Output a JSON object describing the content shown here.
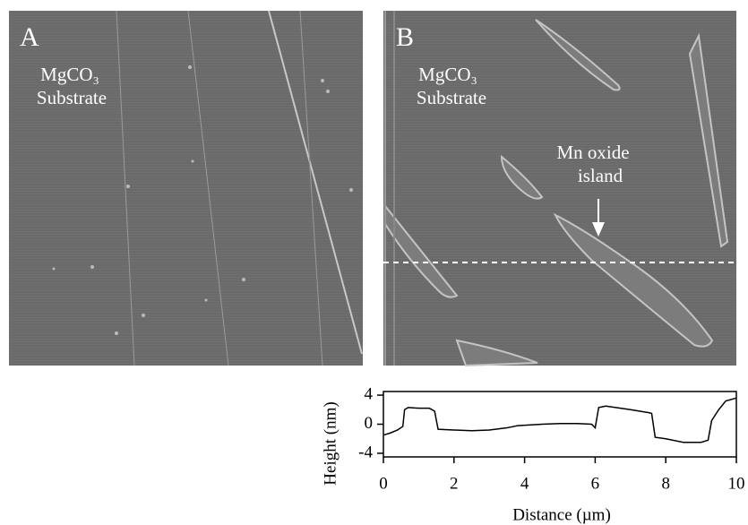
{
  "panels": [
    {
      "letter": "A",
      "material": "MgCO₃",
      "material_line2": "Substrate"
    },
    {
      "letter": "B",
      "material": "MgCO₃",
      "material_line2": "Substrate",
      "annotation_line1": "Mn oxide",
      "annotation_line2": "island"
    }
  ],
  "chart_data": {
    "type": "line",
    "x_label": "Distance (µm)",
    "y_label": "Height (nm)",
    "x": [
      0,
      0.2,
      0.4,
      0.55,
      0.6,
      0.7,
      1.0,
      1.3,
      1.45,
      1.55,
      2,
      2.5,
      3,
      3.5,
      3.8,
      4.5,
      5,
      5.5,
      5.9,
      6.0,
      6.1,
      6.3,
      7,
      7.5,
      7.6,
      7.7,
      8,
      8.5,
      9,
      9.2,
      9.3,
      9.5,
      9.7,
      10
    ],
    "series": [
      {
        "color": "#000000",
        "values": [
          -1.5,
          -1.2,
          -0.8,
          -0.3,
          2.0,
          2.3,
          2.2,
          2.2,
          1.8,
          -0.7,
          -0.8,
          -0.9,
          -0.8,
          -0.5,
          -0.2,
          0,
          0.1,
          0.1,
          0,
          -0.5,
          2.3,
          2.5,
          2.0,
          1.6,
          1.5,
          -1.8,
          -2.0,
          -2.5,
          -2.5,
          -2.2,
          0.5,
          2.0,
          3.2,
          3.6
        ]
      }
    ],
    "xlim": [
      0,
      10
    ],
    "xticks": [
      0,
      2,
      4,
      6,
      8,
      10
    ],
    "ylim": [
      -4.5,
      4.5
    ],
    "yticks": [
      -4,
      0,
      4
    ]
  }
}
